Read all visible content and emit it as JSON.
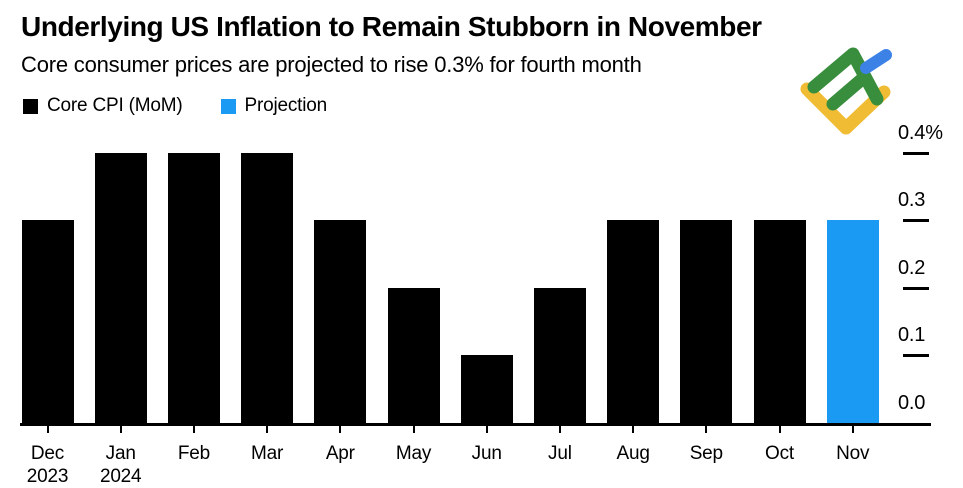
{
  "chart_data": {
    "type": "bar",
    "title": "Underlying US Inflation to Remain Stubborn in November",
    "subtitle": "Core consumer prices are projected to rise 0.3% for fourth month",
    "legend": [
      {
        "label": "Core CPI (MoM)",
        "color": "#000000"
      },
      {
        "label": "Projection",
        "color": "#1B9AF3"
      }
    ],
    "legend_position": "top-left",
    "categories": [
      "Dec",
      "Jan",
      "Feb",
      "Mar",
      "Apr",
      "May",
      "Jun",
      "Jul",
      "Aug",
      "Sep",
      "Oct",
      "Nov"
    ],
    "values": [
      0.3,
      0.4,
      0.4,
      0.4,
      0.3,
      0.2,
      0.1,
      0.2,
      0.3,
      0.3,
      0.3,
      0.3
    ],
    "projected_index": 11,
    "year_labels": [
      {
        "category_index": 0,
        "text": "2023"
      },
      {
        "category_index": 1,
        "text": "2024"
      }
    ],
    "xlabel": "",
    "ylabel": "",
    "ylim": [
      0,
      0.4
    ],
    "yticks": [
      0,
      0.1,
      0.2,
      0.3,
      0.4
    ],
    "ytick_labels": [
      "0.0",
      "0.1",
      "0.2",
      "0.3",
      "0.4%"
    ],
    "grid": false,
    "bar_color": "#000000",
    "projection_color": "#1B9AF3",
    "axis_color": "#000000"
  },
  "logo": {
    "name": "litefinance-logo",
    "green": "#388E3C",
    "yellow": "#F0BC34",
    "blue": "#3C82E6"
  }
}
